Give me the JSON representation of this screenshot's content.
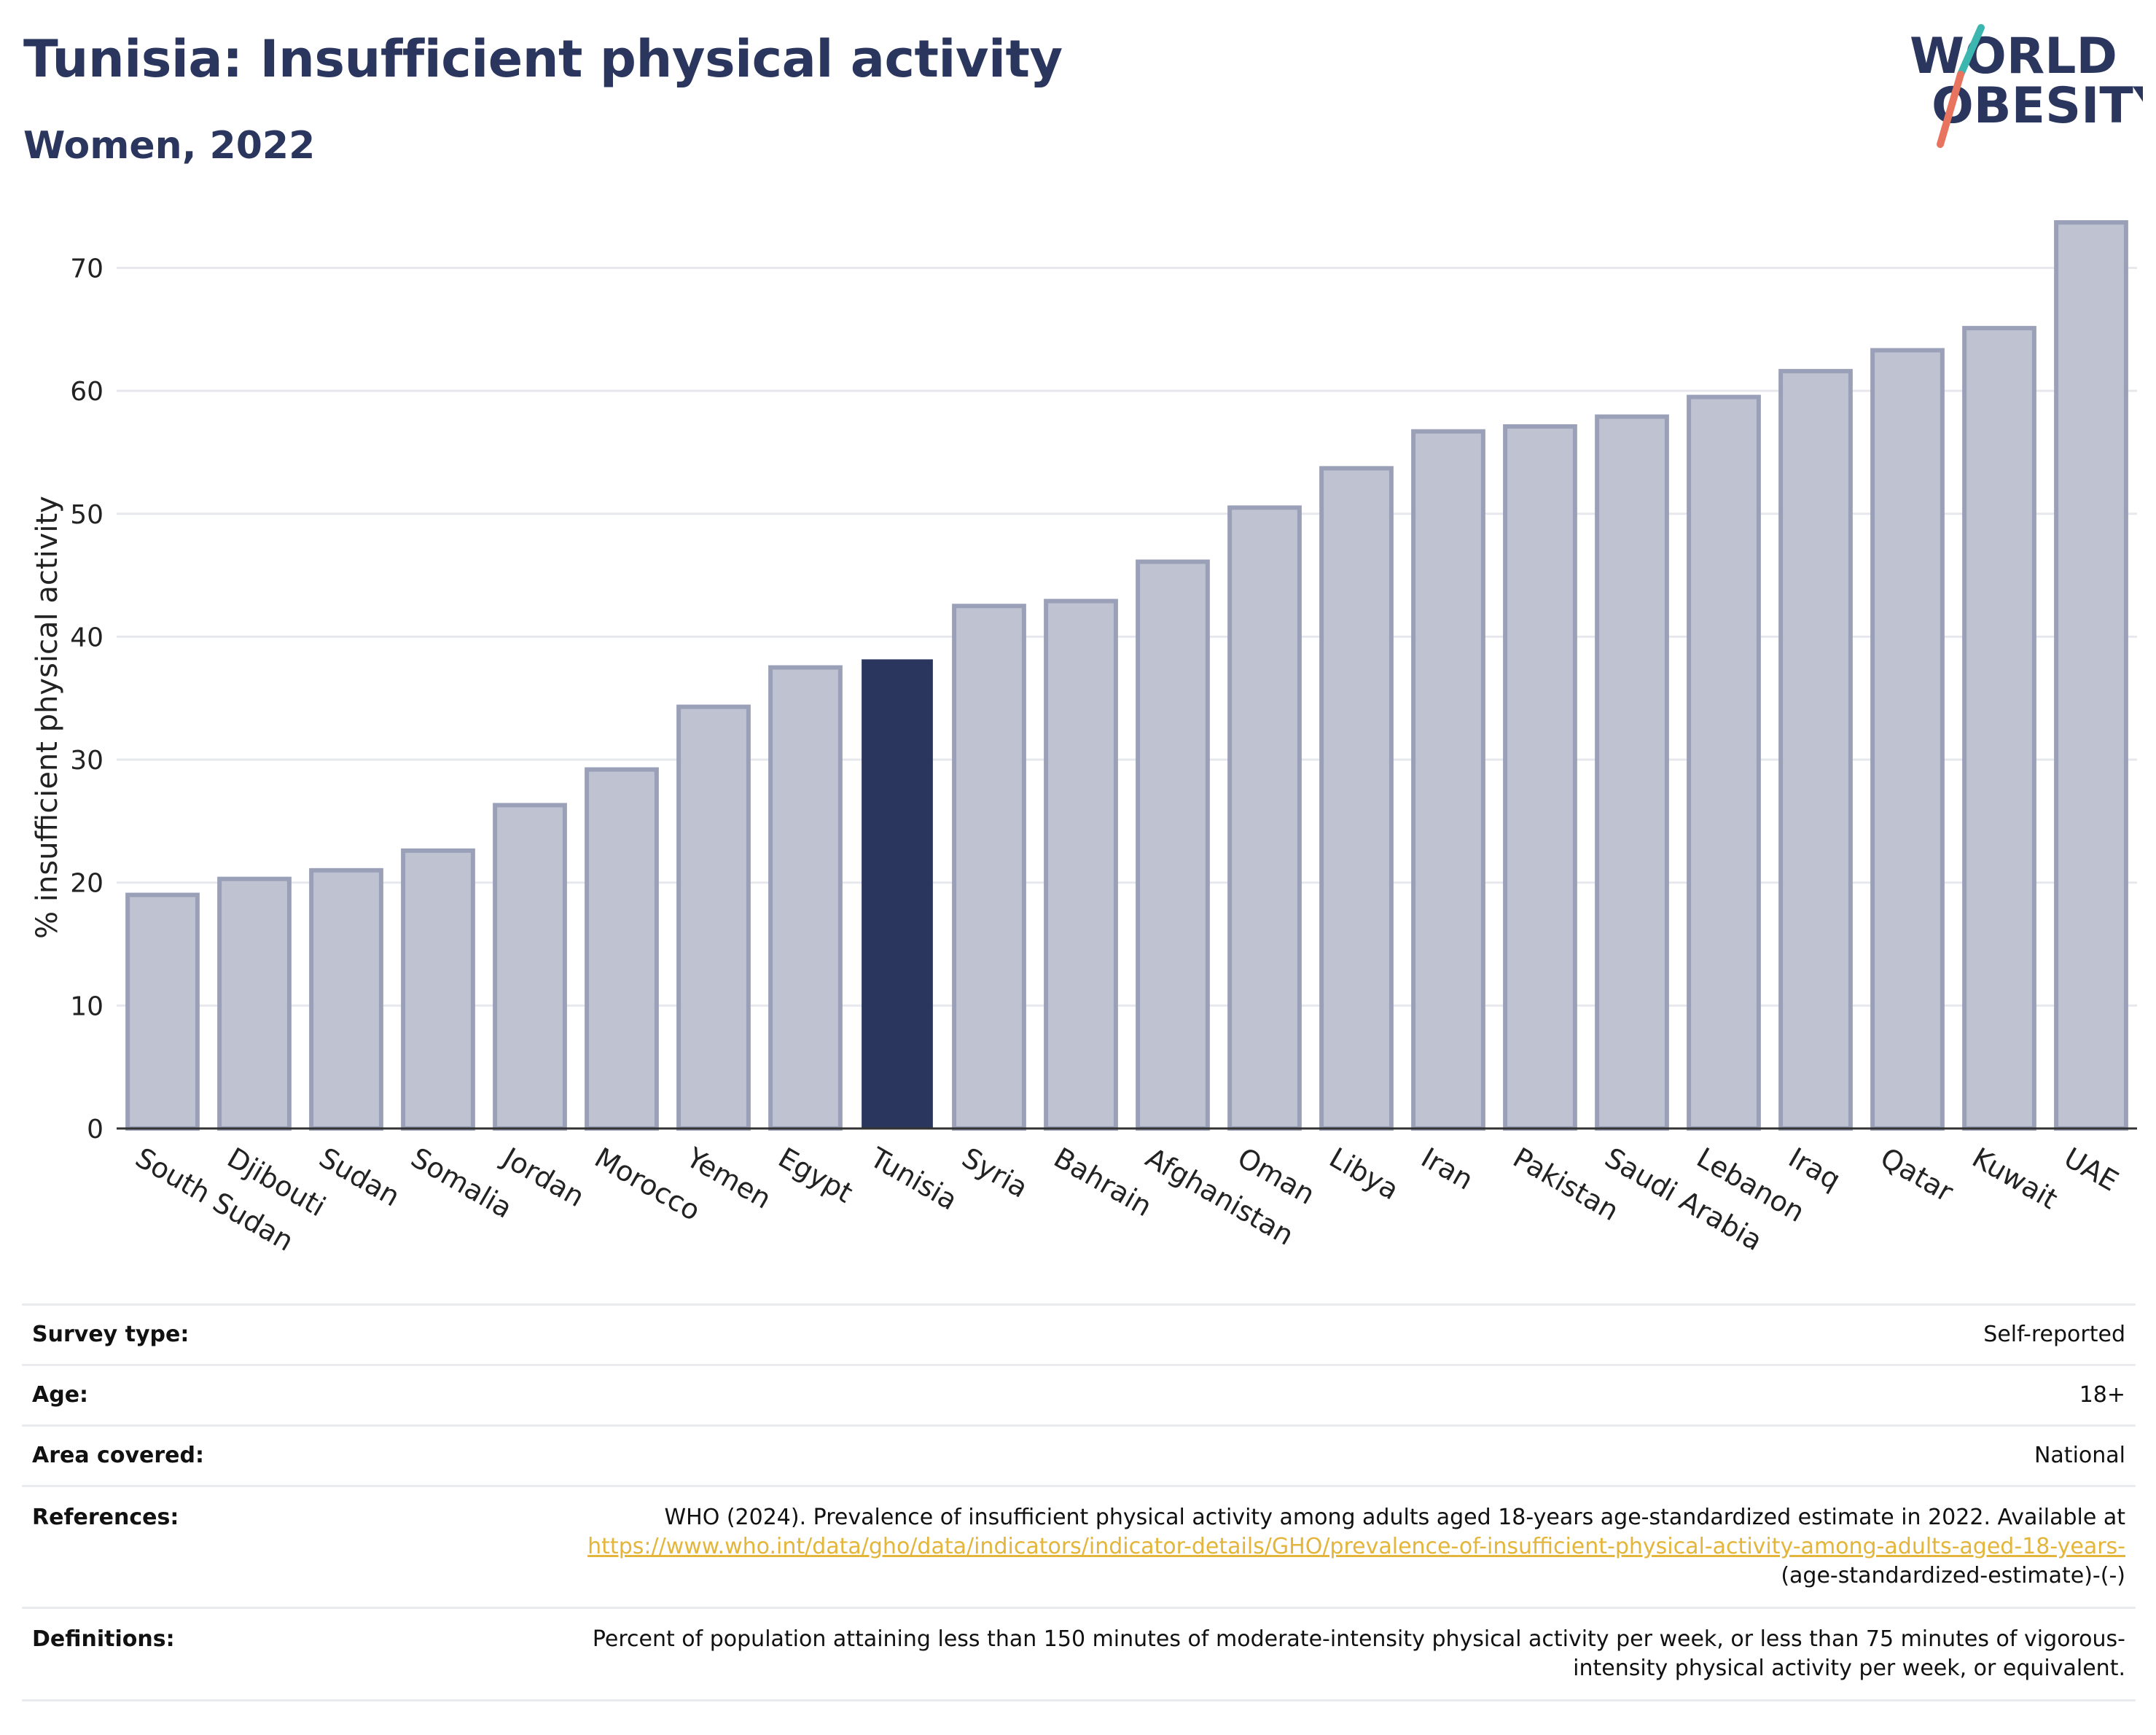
{
  "header": {
    "title": "Tunisia: Insufficient physical activity",
    "subtitle": "Women, 2022"
  },
  "logo": {
    "line1": "WORLD",
    "line2": "OBESITY"
  },
  "colors": {
    "highlight": "#2b365e",
    "bar": "#bfc3d1",
    "bar_edge": "#9aa0b8",
    "grid": "#e6e8ee",
    "logo_teal": "#3cb7b0",
    "logo_coral": "#e8735f",
    "link": "#e3b53a"
  },
  "chart_data": {
    "type": "bar",
    "title": "Tunisia: Insufficient physical activity",
    "subtitle": "Women, 2022",
    "xlabel": "",
    "ylabel": "% insufficient physical activity",
    "ylim": [
      0,
      74
    ],
    "yticks": [
      0,
      10,
      20,
      30,
      40,
      50,
      60,
      70
    ],
    "grid": true,
    "highlight": "Tunisia",
    "categories": [
      "South Sudan",
      "Djibouti",
      "Sudan",
      "Somalia",
      "Jordan",
      "Morocco",
      "Yemen",
      "Egypt",
      "Tunisia",
      "Syria",
      "Bahrain",
      "Afghanistan",
      "Oman",
      "Libya",
      "Iran",
      "Pakistan",
      "Saudi Arabia",
      "Lebanon",
      "Iraq",
      "Qatar",
      "Kuwait",
      "UAE"
    ],
    "values": [
      19.0,
      20.3,
      21.0,
      22.6,
      26.3,
      29.2,
      34.3,
      37.5,
      38.1,
      42.5,
      42.9,
      46.1,
      50.5,
      53.7,
      56.7,
      57.1,
      57.9,
      59.5,
      61.6,
      63.3,
      65.1,
      73.7
    ]
  },
  "meta": [
    {
      "key": "Survey type:",
      "value": "Self-reported"
    },
    {
      "key": "Age:",
      "value": "18+"
    },
    {
      "key": "Area covered:",
      "value": "National"
    },
    {
      "key": "References:",
      "value": "WHO (2024). Prevalence of insufficient physical activity among adults aged 18-years age-standardized estimate in 2022. Available at",
      "link": "https://www.who.int/data/gho/data/indicators/indicator-details/GHO/prevalence-of-insufficient-physical-activity-among-adults-aged-18-years-",
      "suffix": "(age-standardized-estimate)-(-)"
    },
    {
      "key": "Definitions:",
      "value": "Percent of population attaining less than 150 minutes of moderate-intensity physical activity per week, or less than 75 minutes of vigorous-intensity physical activity per week, or equivalent."
    }
  ]
}
